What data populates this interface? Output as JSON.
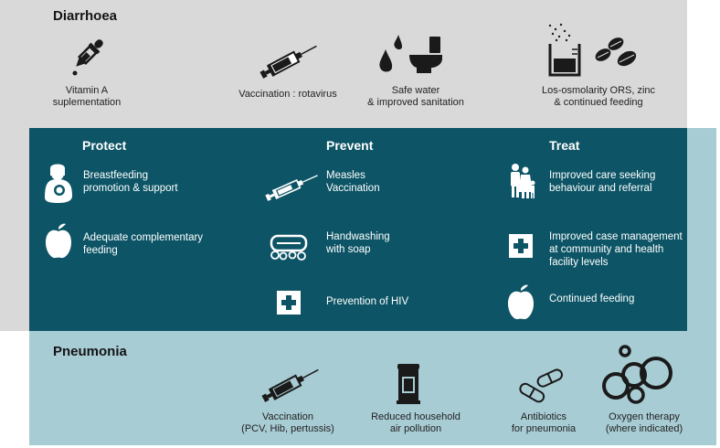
{
  "diarrhoea": {
    "title": "Diarrhoea",
    "items": [
      {
        "icon": "dropper-icon",
        "label_1": "Vitamin A",
        "label_2": "suplementation"
      },
      {
        "icon": "syringe-icon",
        "label_1": "Vaccination : rotavirus",
        "label_2": ""
      },
      {
        "icon": "water-toilet-icon",
        "label_1": "Safe water",
        "label_2": "& improved sanitation"
      },
      {
        "icon": "ors-pills-icon",
        "label_1": "Los-osmolarity ORS, zinc",
        "label_2": "& continued feeding"
      }
    ]
  },
  "shared": {
    "protect": {
      "heading": "Protect",
      "items": [
        {
          "icon": "breastfeeding-icon",
          "line_1": "Breastfeeding",
          "line_2": "promotion & support"
        },
        {
          "icon": "apple-icon",
          "line_1": "Adequate complementary",
          "line_2": "feeding"
        }
      ]
    },
    "prevent": {
      "heading": "Prevent",
      "items": [
        {
          "icon": "syringe-icon",
          "line_1": "Measles",
          "line_2": "Vaccination"
        },
        {
          "icon": "soap-icon",
          "line_1": "Handwashing",
          "line_2": "with soap"
        },
        {
          "icon": "medical-cross-icon",
          "line_1": "Prevention of HIV",
          "line_2": ""
        }
      ]
    },
    "treat": {
      "heading": "Treat",
      "items": [
        {
          "icon": "family-icon",
          "line_1": "Improved care seeking",
          "line_2": "behaviour and referral",
          "line_3": ""
        },
        {
          "icon": "medical-cross-icon",
          "line_1": "Improved case management",
          "line_2": "at community and health",
          "line_3": "facility levels"
        },
        {
          "icon": "apple-icon",
          "line_1": "Continued feeding",
          "line_2": "",
          "line_3": ""
        }
      ]
    }
  },
  "pneumonia": {
    "title": "Pneumonia",
    "items": [
      {
        "icon": "syringe-icon",
        "label_1": "Vaccination",
        "label_2": "(PCV, Hib, pertussis)"
      },
      {
        "icon": "stove-icon",
        "label_1": "Reduced household",
        "label_2": "air pollution"
      },
      {
        "icon": "capsules-icon",
        "label_1": "Antibiotics",
        "label_2": "for pneumonia"
      },
      {
        "icon": "oxygen-bubbles-icon",
        "label_1": "Oxygen therapy",
        "label_2": "(where indicated)"
      }
    ]
  },
  "colors": {
    "diarrhoea_bg": "#d9d9d9",
    "pneumonia_bg": "#a8ccd4",
    "center_bg": "#0d5566"
  }
}
